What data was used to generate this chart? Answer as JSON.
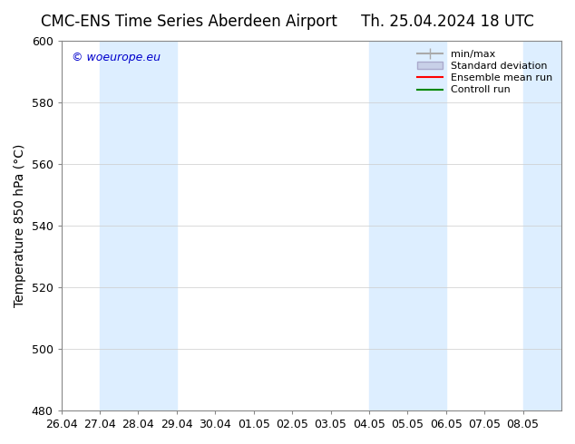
{
  "title_left": "CMC-ENS Time Series Aberdeen Airport",
  "title_right": "Th. 25.04.2024 18 UTC",
  "ylabel": "Temperature 850 hPa (°C)",
  "watermark": "© woeurope.eu",
  "watermark_color": "#0000cc",
  "ylim": [
    480,
    600
  ],
  "yticks": [
    480,
    500,
    520,
    540,
    560,
    580,
    600
  ],
  "xlim_start": "2024-04-26",
  "xlim_end": "2024-05-09",
  "xtick_labels": [
    "26.04",
    "27.04",
    "28.04",
    "29.04",
    "30.04",
    "01.05",
    "02.05",
    "03.05",
    "04.05",
    "05.05",
    "06.05",
    "07.05",
    "08.05"
  ],
  "shaded_bands": [
    {
      "x_start": "2024-04-27",
      "x_end": "2024-04-29"
    },
    {
      "x_start": "2024-05-04",
      "x_end": "2024-05-06"
    },
    {
      "x_start": "2024-05-08",
      "x_end": "2024-05-09"
    }
  ],
  "shade_color": "#ddeeff",
  "background_color": "#ffffff",
  "plot_bg_color": "#ffffff",
  "legend_labels": [
    "min/max",
    "Standard deviation",
    "Ensemble mean run",
    "Controll run"
  ],
  "legend_colors": [
    "#aaaaaa",
    "#aaaacc",
    "#ff0000",
    "#008800"
  ],
  "title_fontsize": 12,
  "axis_label_fontsize": 10,
  "tick_fontsize": 9
}
